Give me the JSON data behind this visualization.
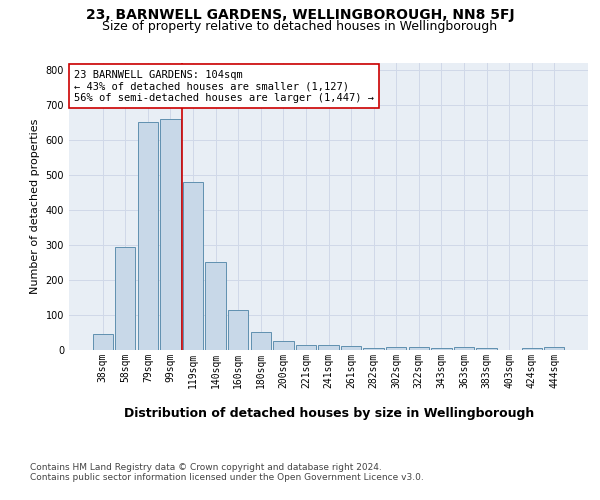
{
  "title1": "23, BARNWELL GARDENS, WELLINGBOROUGH, NN8 5FJ",
  "title2": "Size of property relative to detached houses in Wellingborough",
  "xlabel": "Distribution of detached houses by size in Wellingborough",
  "ylabel": "Number of detached properties",
  "categories": [
    "38sqm",
    "58sqm",
    "79sqm",
    "99sqm",
    "119sqm",
    "140sqm",
    "160sqm",
    "180sqm",
    "200sqm",
    "221sqm",
    "241sqm",
    "261sqm",
    "282sqm",
    "302sqm",
    "322sqm",
    "343sqm",
    "363sqm",
    "383sqm",
    "403sqm",
    "424sqm",
    "444sqm"
  ],
  "values": [
    45,
    295,
    650,
    660,
    480,
    250,
    115,
    50,
    27,
    15,
    15,
    10,
    5,
    8,
    8,
    5,
    8,
    5,
    1,
    5,
    8
  ],
  "bar_color": "#c8d8e8",
  "bar_edge_color": "#6090b0",
  "vline_x": 3.5,
  "vline_color": "#cc0000",
  "annotation_text": "23 BARNWELL GARDENS: 104sqm\n← 43% of detached houses are smaller (1,127)\n56% of semi-detached houses are larger (1,447) →",
  "annotation_box_color": "#ffffff",
  "annotation_box_edge": "#cc0000",
  "grid_color": "#d0d8e8",
  "bg_color": "#e8eef5",
  "footnote": "Contains HM Land Registry data © Crown copyright and database right 2024.\nContains public sector information licensed under the Open Government Licence v3.0.",
  "ylim": [
    0,
    820
  ],
  "title1_fontsize": 10,
  "title2_fontsize": 9,
  "xlabel_fontsize": 9,
  "ylabel_fontsize": 8,
  "tick_fontsize": 7,
  "annot_fontsize": 7.5,
  "footnote_fontsize": 6.5
}
